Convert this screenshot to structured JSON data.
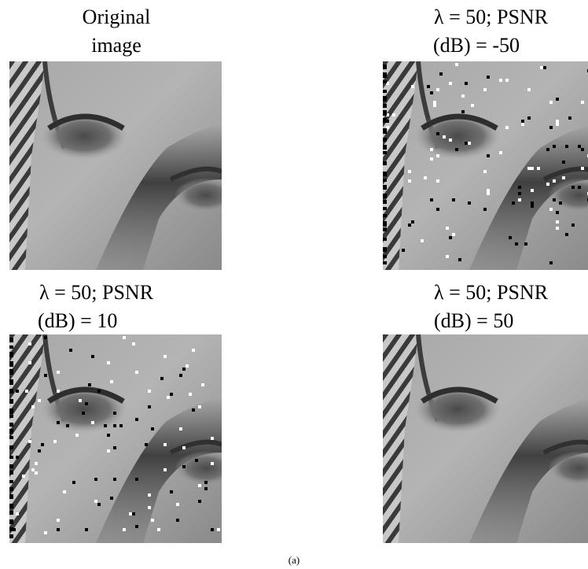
{
  "figure": {
    "panels": [
      {
        "caption": [
          "Original",
          "image"
        ]
      },
      {
        "caption": [
          "λ = 50; PSNR",
          "(dB) = -50"
        ]
      },
      {
        "caption": [
          "λ = 50; PSNR",
          "(dB) = 10"
        ]
      },
      {
        "caption": [
          "λ = 50; PSNR",
          "(dB) = 50"
        ]
      }
    ],
    "label": "(a)"
  }
}
